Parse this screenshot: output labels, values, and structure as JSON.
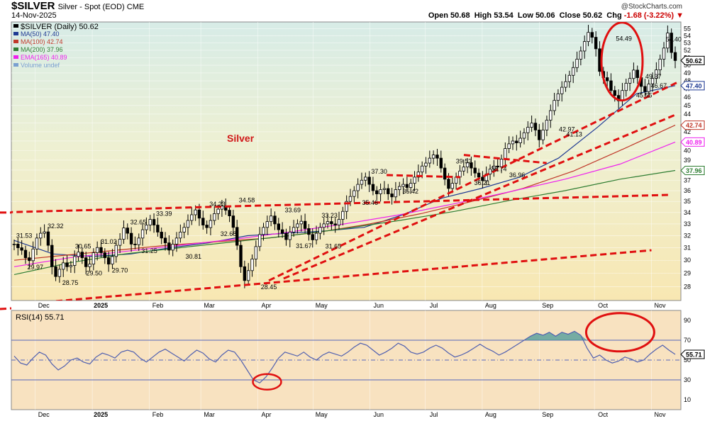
{
  "header": {
    "symbol": "$SILVER",
    "description": "Silver - Spot (EOD)",
    "exchange": "CME",
    "date": "14-Nov-2025",
    "open_label": "Open",
    "open": "50.68",
    "high_label": "High",
    "high": "53.54",
    "low_label": "Low",
    "low": "50.06",
    "close_label": "Close",
    "close": "50.62",
    "chg_label": "Chg",
    "chg": "-1.68 (-3.22%)",
    "watermark": "@StockCharts.com"
  },
  "legend": {
    "price": "$SILVER (Daily) 50.62",
    "ma50": "MA(50) 47.40",
    "ma100": "MA(100) 42.74",
    "ma200": "MA(200) 37.96",
    "ema165": "EMA(165) 40.89",
    "volume": "Volume undef"
  },
  "colors": {
    "price": "#000000",
    "ma50": "#1f3a93",
    "ma100": "#c0392b",
    "ma200": "#2e7d32",
    "ema165": "#ee22ee",
    "trend": "#e01010",
    "annotation": "#d01818",
    "rsi": "#5060b0"
  },
  "annotation_label": "Silver",
  "chart_data": [
    {
      "type": "line",
      "subtype": "candlestick-ohlc",
      "title": "$SILVER (Daily) 50.62",
      "x_axis_labels": [
        "Dec",
        "2025",
        "Feb",
        "Mar",
        "Apr",
        "May",
        "Jun",
        "Jul",
        "Aug",
        "Sep",
        "Oct",
        "Nov"
      ],
      "x_range": [
        "Nov-2024",
        "Nov-2025"
      ],
      "y_ticks": [
        28,
        29,
        30,
        31,
        32,
        33,
        34,
        35,
        36,
        37,
        38,
        39,
        40,
        41,
        42,
        43,
        44,
        45,
        46,
        47,
        48,
        49,
        50,
        51,
        52,
        53,
        54,
        55
      ],
      "ylim": [
        27,
        56
      ],
      "price_labels": [
        {
          "date": "2024-11-25",
          "value": 31.53
        },
        {
          "date": "2024-12-01",
          "value": 29.97
        },
        {
          "date": "2024-12-12",
          "value": 32.32
        },
        {
          "date": "2024-12-20",
          "value": 28.75
        },
        {
          "date": "2024-12-27",
          "value": 30.65
        },
        {
          "date": "2025-01-02",
          "value": 29.5
        },
        {
          "date": "2025-01-10",
          "value": 31.02
        },
        {
          "date": "2025-01-16",
          "value": 29.7
        },
        {
          "date": "2025-01-26",
          "value": 32.65
        },
        {
          "date": "2025-02-01",
          "value": 31.25
        },
        {
          "date": "2025-02-09",
          "value": 33.39
        },
        {
          "date": "2025-02-25",
          "value": 30.81
        },
        {
          "date": "2025-03-10",
          "value": 34.23
        },
        {
          "date": "2025-03-16",
          "value": 32.68
        },
        {
          "date": "2025-03-26",
          "value": 34.58
        },
        {
          "date": "2025-04-07",
          "value": 28.45
        },
        {
          "date": "2025-04-20",
          "value": 33.69
        },
        {
          "date": "2025-04-26",
          "value": 31.67
        },
        {
          "date": "2025-05-10",
          "value": 33.23
        },
        {
          "date": "2025-05-12",
          "value": 31.65
        },
        {
          "date": "2025-06-06",
          "value": 37.3
        },
        {
          "date": "2025-06-01",
          "value": 35.46
        },
        {
          "date": "2025-06-23",
          "value": 35.42
        },
        {
          "date": "2025-07-22",
          "value": 39.53
        },
        {
          "date": "2025-08-01",
          "value": 36.21
        },
        {
          "date": "2025-08-10",
          "value": 38.74
        },
        {
          "date": "2025-08-20",
          "value": 36.96
        },
        {
          "date": "2025-09-16",
          "value": 42.97
        },
        {
          "date": "2025-09-20",
          "value": 41.13
        },
        {
          "date": "2025-10-17",
          "value": 54.49
        },
        {
          "date": "2025-10-28",
          "value": 45.55
        },
        {
          "date": "2025-11-02",
          "value": 49.37
        },
        {
          "date": "2025-11-05",
          "value": 46.67
        },
        {
          "date": "2025-11-13",
          "value": 54.4
        }
      ],
      "axis_value_tags": [
        {
          "name": "Close",
          "value": 50.62
        },
        {
          "name": "MA(50)",
          "value": 47.4
        },
        {
          "name": "MA(100)",
          "value": 42.74
        },
        {
          "name": "EMA(165)",
          "value": 40.89
        },
        {
          "name": "MA(200)",
          "value": 37.96
        }
      ],
      "series": [
        {
          "name": "$SILVER",
          "values": [
            31.3,
            31.0,
            30.8,
            30.2,
            29.97,
            30.9,
            31.8,
            32.2,
            32.32,
            31.2,
            29.5,
            28.75,
            29.3,
            29.8,
            29.5,
            29.6,
            30.3,
            30.65,
            30.2,
            29.5,
            29.7,
            30.6,
            31.02,
            30.6,
            30.2,
            29.7,
            30.3,
            31.2,
            31.7,
            32.65,
            32.2,
            31.3,
            31.25,
            31.8,
            32.5,
            32.9,
            33.39,
            32.9,
            32.3,
            31.8,
            31.4,
            30.81,
            31.3,
            31.8,
            32.3,
            32.7,
            33.3,
            33.8,
            34.23,
            33.5,
            32.9,
            32.68,
            33.3,
            33.9,
            34.3,
            34.58,
            34.2,
            33.7,
            32.7,
            31.2,
            29.5,
            28.45,
            29.2,
            30.1,
            31.1,
            32.1,
            32.7,
            33.2,
            33.69,
            33.0,
            32.5,
            32.2,
            31.67,
            32.3,
            32.7,
            33.0,
            33.23,
            32.6,
            32.1,
            31.65,
            32.2,
            32.7,
            33.0,
            33.2,
            33.0,
            32.9,
            33.4,
            34.1,
            35.0,
            35.46,
            36.0,
            36.6,
            37.0,
            37.3,
            36.6,
            36.0,
            35.7,
            36.1,
            36.2,
            35.7,
            35.42,
            36.1,
            36.4,
            36.6,
            36.3,
            36.7,
            37.3,
            37.8,
            38.4,
            38.7,
            39.2,
            39.53,
            39.2,
            38.2,
            37.1,
            36.21,
            36.7,
            37.3,
            37.9,
            38.3,
            38.74,
            38.2,
            37.7,
            37.3,
            36.96,
            37.6,
            38.1,
            38.4,
            38.3,
            39.1,
            40.2,
            40.7,
            41.0,
            40.8,
            41.3,
            41.9,
            42.5,
            42.97,
            42.2,
            41.13,
            42.2,
            43.3,
            44.4,
            45.6,
            46.4,
            47.2,
            47.9,
            48.7,
            49.7,
            50.8,
            51.9,
            53.2,
            54.49,
            53.8,
            52.2,
            49.2,
            48.4,
            48.0,
            46.8,
            46.2,
            45.55,
            46.8,
            47.7,
            48.3,
            49.37,
            48.4,
            47.3,
            46.67,
            47.6,
            48.3,
            49.4,
            50.8,
            52.3,
            54.4,
            51.7,
            50.62
          ]
        },
        {
          "name": "MA(50)",
          "values": [
            31.6,
            30.5,
            30.3,
            30.5,
            31.0,
            31.4,
            32.0,
            32.2,
            32.4,
            32.7,
            33.8,
            35.3,
            36.2,
            37.3,
            39.2,
            42.5,
            46.4,
            47.4
          ]
        },
        {
          "name": "MA(100)",
          "values": [
            30.0,
            30.4,
            30.8,
            31.2,
            31.5,
            31.8,
            32.3,
            33.0,
            33.9,
            35.0,
            36.2,
            37.9,
            40.2,
            42.74
          ]
        },
        {
          "name": "MA(200)",
          "values": [
            28.9,
            29.8,
            30.5,
            31.0,
            31.5,
            32.0,
            32.6,
            33.3,
            34.1,
            35.1,
            36.0,
            37.1,
            37.96
          ]
        },
        {
          "name": "EMA(165)",
          "values": [
            29.5,
            30.2,
            30.7,
            31.2,
            31.7,
            32.3,
            33.0,
            33.8,
            34.8,
            35.9,
            37.1,
            38.6,
            40.89
          ]
        }
      ]
    },
    {
      "type": "line",
      "title": "RSI(14) 55.71",
      "x_axis_labels": [
        "Dec",
        "2025",
        "Feb",
        "Mar",
        "Apr",
        "May",
        "Jun",
        "Jul",
        "Aug",
        "Sep",
        "Oct",
        "Nov"
      ],
      "y_ticks": [
        10,
        30,
        50,
        70,
        90
      ],
      "ylim": [
        0,
        100
      ],
      "reference_lines": [
        30,
        50,
        70
      ],
      "series": [
        {
          "name": "RSI(14)",
          "values": [
            54,
            47,
            45,
            52,
            58,
            55,
            46,
            40,
            44,
            50,
            52,
            48,
            46,
            53,
            57,
            55,
            52,
            58,
            60,
            58,
            52,
            48,
            53,
            58,
            61,
            57,
            53,
            49,
            55,
            60,
            57,
            51,
            48,
            55,
            60,
            58,
            50,
            40,
            30,
            27,
            33,
            42,
            52,
            58,
            56,
            54,
            58,
            53,
            50,
            55,
            58,
            56,
            54,
            58,
            63,
            67,
            65,
            60,
            55,
            58,
            62,
            67,
            64,
            58,
            56,
            58,
            62,
            65,
            62,
            57,
            53,
            55,
            58,
            62,
            66,
            62,
            59,
            55,
            58,
            62,
            66,
            70,
            74,
            77,
            75,
            78,
            74,
            78,
            76,
            79,
            75,
            62,
            52,
            55,
            50,
            47,
            49,
            53,
            51,
            48,
            50,
            56,
            61,
            65,
            60,
            55.71
          ]
        }
      ]
    }
  ]
}
